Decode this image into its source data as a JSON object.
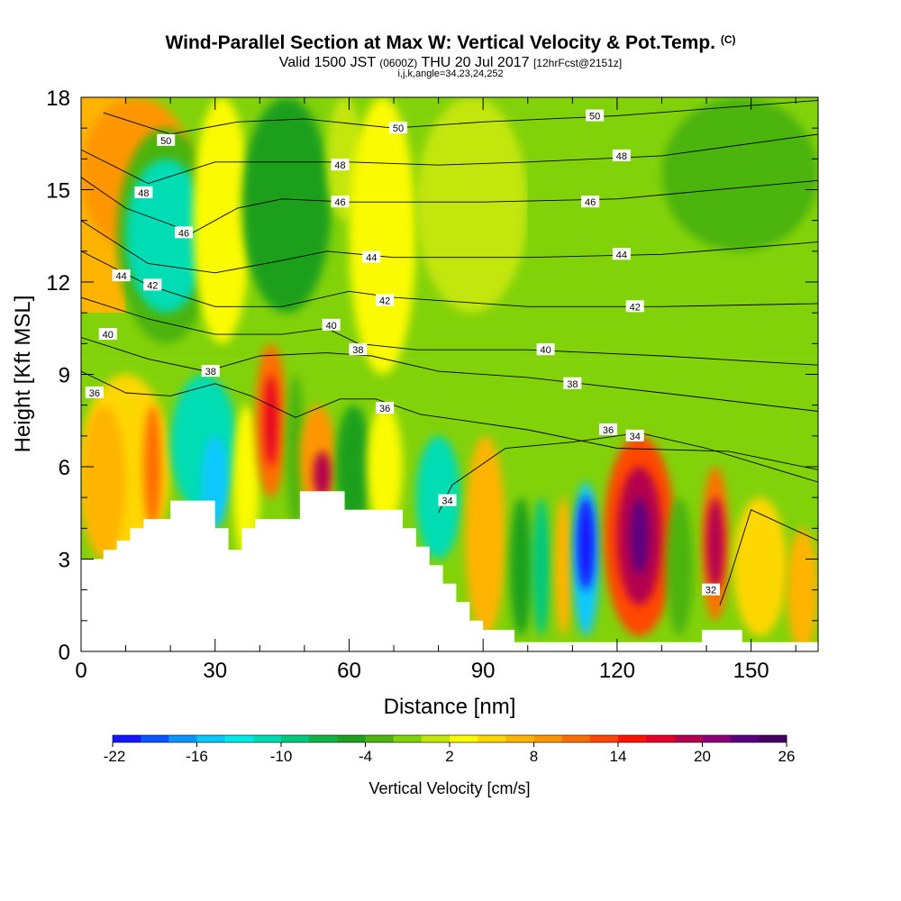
{
  "title": {
    "main": "Wind-Parallel Section at Max W: Vertical Velocity & Pot.Temp.",
    "mark": "(C)"
  },
  "subtitle": {
    "left": "Valid 1500 JST",
    "utc": "(0600Z)",
    "date": "THU 20 Jul 2017",
    "fcst": "[12hrFcst@2151z]"
  },
  "info": "i,j,k,angle=34,23,24,252",
  "chart_data": {
    "type": "heatmap",
    "xlabel": "Distance [nm]",
    "ylabel": "Height [Kft MSL]",
    "xlim": [
      0,
      165
    ],
    "ylim": [
      0,
      18
    ],
    "xticks": [
      0,
      30,
      60,
      90,
      120,
      150
    ],
    "yticks": [
      0,
      3,
      6,
      9,
      12,
      15,
      18
    ],
    "colorbar": {
      "label": "Vertical Velocity [cm/s]",
      "ticks": [
        -22,
        -16,
        -10,
        -4,
        2,
        8,
        14,
        20,
        26
      ],
      "colors": [
        "#1414ff",
        "#0a55ff",
        "#0a95ff",
        "#08c8ff",
        "#00eaea",
        "#00dcb4",
        "#00c87d",
        "#10b446",
        "#1ea01e",
        "#4bb40f",
        "#82d20a",
        "#c3e60a",
        "#fafa00",
        "#ffd700",
        "#ffb400",
        "#ff9600",
        "#ff6e00",
        "#ff4600",
        "#ff1400",
        "#e60028",
        "#b40050",
        "#8c0078",
        "#5a0082",
        "#460064"
      ]
    },
    "terrain": [
      [
        0,
        3
      ],
      [
        5,
        3
      ],
      [
        5,
        3.3
      ],
      [
        8,
        3.3
      ],
      [
        8,
        3.6
      ],
      [
        11,
        3.6
      ],
      [
        11,
        4
      ],
      [
        14,
        4
      ],
      [
        14,
        4.3
      ],
      [
        20,
        4.3
      ],
      [
        20,
        4.9
      ],
      [
        30,
        4.9
      ],
      [
        30,
        4
      ],
      [
        33,
        4
      ],
      [
        33,
        3.3
      ],
      [
        36,
        3.3
      ],
      [
        36,
        4
      ],
      [
        39,
        4
      ],
      [
        39,
        4.3
      ],
      [
        49,
        4.3
      ],
      [
        49,
        5.2
      ],
      [
        59,
        5.2
      ],
      [
        59,
        4.6
      ],
      [
        72,
        4.6
      ],
      [
        72,
        4
      ],
      [
        75,
        4
      ],
      [
        75,
        3.4
      ],
      [
        78,
        3.4
      ],
      [
        78,
        2.8
      ],
      [
        81,
        2.8
      ],
      [
        81,
        2.2
      ],
      [
        84,
        2.2
      ],
      [
        84,
        1.6
      ],
      [
        87,
        1.6
      ],
      [
        87,
        1
      ],
      [
        90,
        1
      ],
      [
        90,
        0.7
      ],
      [
        97,
        0.7
      ],
      [
        97,
        0.3
      ],
      [
        139,
        0.3
      ],
      [
        139,
        0.7
      ],
      [
        148,
        0.7
      ],
      [
        148,
        0.3
      ],
      [
        165,
        0.3
      ]
    ],
    "theta_contours": [
      {
        "label": "50",
        "pts": [
          [
            5,
            17.5
          ],
          [
            20,
            16.8
          ],
          [
            35,
            17.2
          ],
          [
            50,
            17.3
          ],
          [
            70,
            17.0
          ],
          [
            90,
            17.2
          ],
          [
            120,
            17.4
          ],
          [
            165,
            17.9
          ]
        ],
        "labels_at": [
          [
            19,
            16.6
          ],
          [
            71,
            17.0
          ],
          [
            115,
            17.4
          ]
        ]
      },
      {
        "label": "48",
        "pts": [
          [
            0,
            16.3
          ],
          [
            15,
            15.2
          ],
          [
            30,
            15.9
          ],
          [
            45,
            15.9
          ],
          [
            60,
            15.9
          ],
          [
            80,
            15.8
          ],
          [
            100,
            15.9
          ],
          [
            130,
            16.1
          ],
          [
            165,
            16.8
          ]
        ],
        "labels_at": [
          [
            14,
            14.9
          ],
          [
            58,
            15.8
          ],
          [
            121,
            16.1
          ]
        ]
      },
      {
        "label": "46",
        "pts": [
          [
            0,
            15.4
          ],
          [
            10,
            14.4
          ],
          [
            25,
            13.6
          ],
          [
            35,
            14.4
          ],
          [
            45,
            14.7
          ],
          [
            60,
            14.6
          ],
          [
            90,
            14.6
          ],
          [
            120,
            14.7
          ],
          [
            165,
            15.3
          ]
        ],
        "labels_at": [
          [
            23,
            13.6
          ],
          [
            58,
            14.6
          ],
          [
            114,
            14.6
          ]
        ]
      },
      {
        "label": "44",
        "pts": [
          [
            0,
            14
          ],
          [
            15,
            12.6
          ],
          [
            30,
            12.3
          ],
          [
            45,
            12.7
          ],
          [
            55,
            13.0
          ],
          [
            70,
            12.8
          ],
          [
            100,
            12.8
          ],
          [
            130,
            12.9
          ],
          [
            165,
            13.3
          ]
        ],
        "labels_at": [
          [
            9,
            12.2
          ],
          [
            65,
            12.8
          ],
          [
            121,
            12.9
          ]
        ]
      },
      {
        "label": "42",
        "pts": [
          [
            0,
            13
          ],
          [
            15,
            11.9
          ],
          [
            30,
            11.2
          ],
          [
            45,
            11.2
          ],
          [
            60,
            11.7
          ],
          [
            70,
            11.5
          ],
          [
            100,
            11.2
          ],
          [
            130,
            11.2
          ],
          [
            165,
            11.3
          ]
        ],
        "labels_at": [
          [
            16,
            11.9
          ],
          [
            68,
            11.4
          ],
          [
            124,
            11.2
          ]
        ]
      },
      {
        "label": "40",
        "pts": [
          [
            0,
            11.5
          ],
          [
            15,
            10.8
          ],
          [
            30,
            10.3
          ],
          [
            45,
            10.3
          ],
          [
            55,
            10.5
          ],
          [
            62,
            10.0
          ],
          [
            75,
            9.8
          ],
          [
            100,
            9.8
          ],
          [
            130,
            9.6
          ],
          [
            165,
            9.3
          ]
        ],
        "labels_at": [
          [
            6,
            10.3
          ],
          [
            56,
            10.6
          ],
          [
            104,
            9.8
          ]
        ]
      },
      {
        "label": "38",
        "pts": [
          [
            0,
            10.2
          ],
          [
            15,
            9.5
          ],
          [
            28,
            9.1
          ],
          [
            40,
            9.6
          ],
          [
            55,
            9.7
          ],
          [
            65,
            9.6
          ],
          [
            80,
            9.1
          ],
          [
            100,
            8.9
          ],
          [
            130,
            8.4
          ],
          [
            165,
            7.8
          ]
        ],
        "labels_at": [
          [
            29,
            9.1
          ],
          [
            62,
            9.8
          ],
          [
            110,
            8.7
          ]
        ]
      },
      {
        "label": "36",
        "pts": [
          [
            0,
            9.1
          ],
          [
            10,
            8.4
          ],
          [
            20,
            8.3
          ],
          [
            30,
            8.7
          ],
          [
            38,
            8.3
          ],
          [
            48,
            7.6
          ],
          [
            58,
            8.2
          ],
          [
            66,
            8.2
          ],
          [
            76,
            7.7
          ],
          [
            100,
            7.2
          ],
          [
            120,
            6.6
          ],
          [
            145,
            6.5
          ],
          [
            165,
            5.9
          ]
        ],
        "labels_at": [
          [
            3,
            8.4
          ],
          [
            68,
            7.9
          ],
          [
            118,
            7.2
          ]
        ]
      },
      {
        "label": "34",
        "pts": [
          [
            80,
            4.5
          ],
          [
            83,
            5.4
          ],
          [
            95,
            6.6
          ],
          [
            110,
            6.8
          ],
          [
            125,
            7.1
          ],
          [
            140,
            6.6
          ],
          [
            165,
            5.5
          ]
        ],
        "labels_at": [
          [
            82,
            4.9
          ],
          [
            124,
            7.0
          ]
        ]
      },
      {
        "label": "32",
        "pts": [
          [
            143,
            1.5
          ],
          [
            145,
            2.3
          ],
          [
            150,
            4.6
          ],
          [
            165,
            3.6
          ]
        ],
        "labels_at": [
          [
            141,
            2
          ]
        ]
      }
    ]
  }
}
